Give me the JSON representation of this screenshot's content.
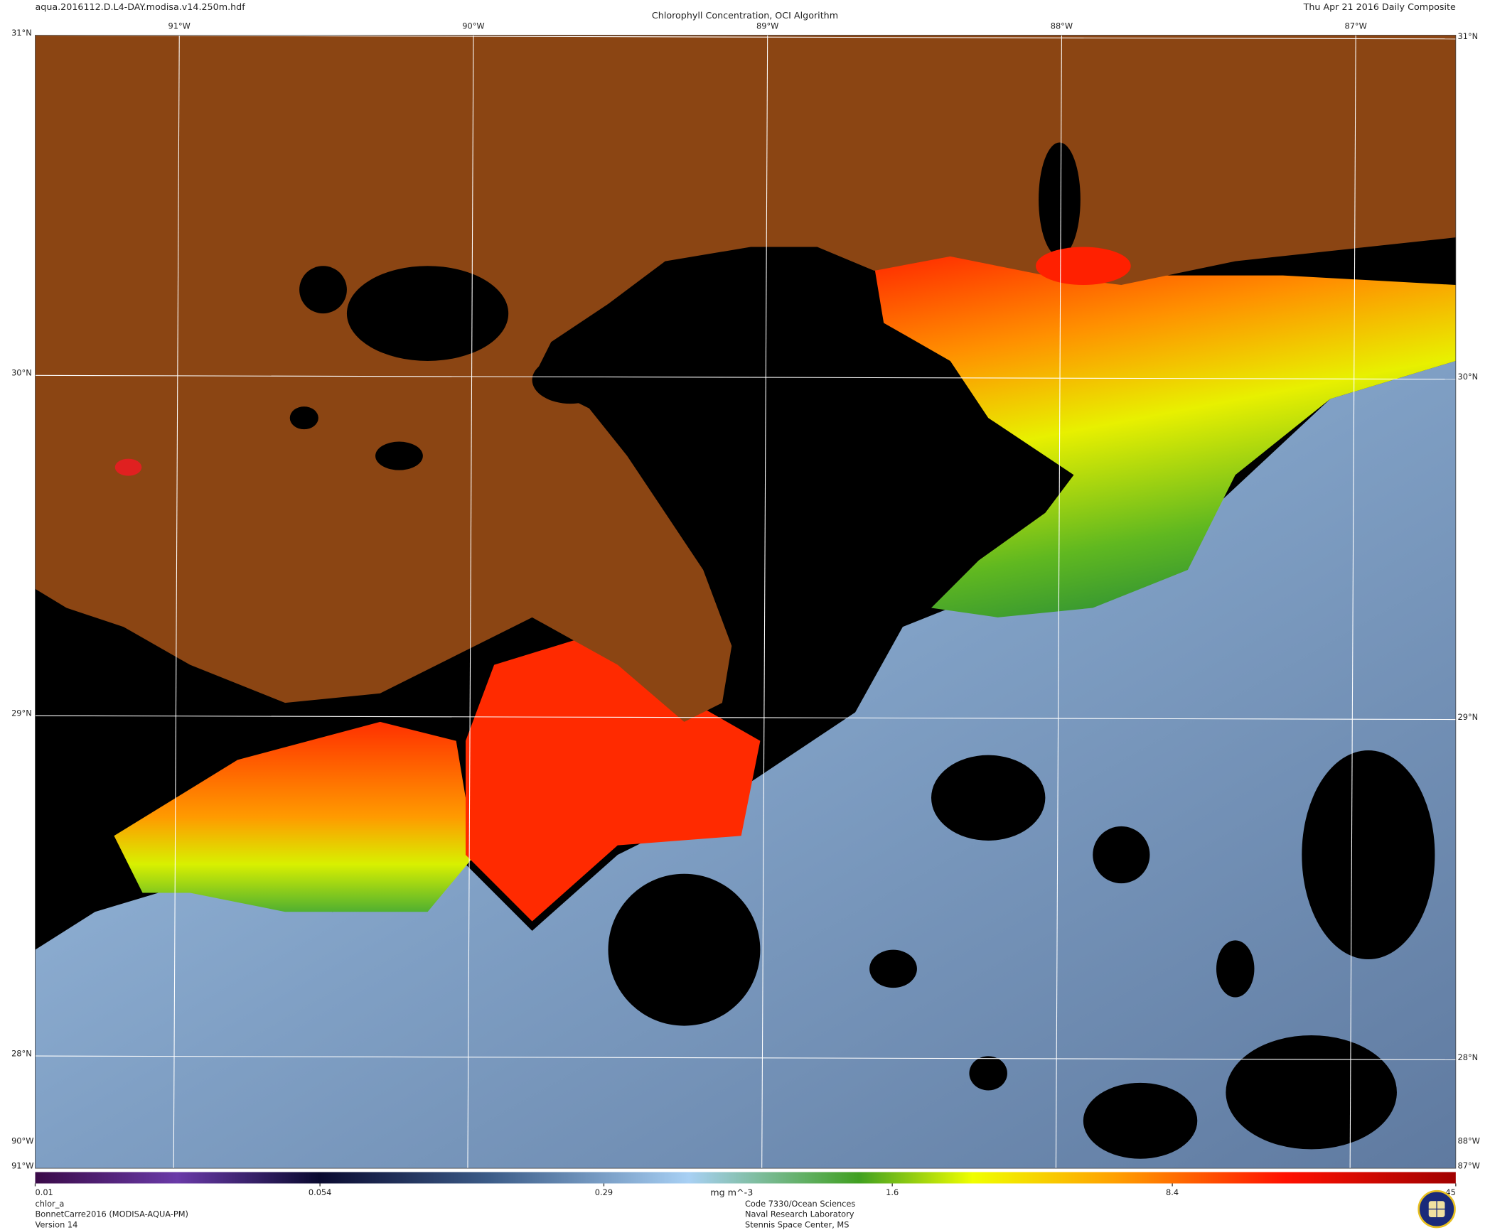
{
  "header": {
    "filename": "aqua.2016112.D.L4-DAY.modisa.v14.250m.hdf",
    "title": "Chlorophyll Concentration, OCI Algorithm",
    "date": "Thu Apr 21 2016 Daily Composite"
  },
  "map": {
    "xlim": [
      -91.49,
      -86.66
    ],
    "ylim": [
      27.67,
      31
    ],
    "lon_ticks": [
      {
        "value": -91,
        "label": "91°W"
      },
      {
        "value": -90,
        "label": "90°W"
      },
      {
        "value": -89,
        "label": "89°W"
      },
      {
        "value": -88,
        "label": "88°W"
      },
      {
        "value": -87,
        "label": "87°W"
      }
    ],
    "lat_ticks": [
      {
        "value": 31,
        "label": "31°N"
      },
      {
        "value": 30,
        "label": "30°N"
      },
      {
        "value": 29,
        "label": "29°N"
      },
      {
        "value": 28,
        "label": "28°N"
      }
    ],
    "grid_color": "#ffffff"
  },
  "colorbar": {
    "scale": "log",
    "unit": "mg m^-3",
    "ticks": [
      0.01,
      0.054,
      0.29,
      1.6,
      8.4,
      45
    ]
  },
  "footer": {
    "left": [
      "chlor_a",
      "BonnetCarre2016 (MODISA-AQUA-PM)",
      "Version 14"
    ],
    "center": [
      "Code 7330/Ocean Sciences",
      "Naval Research Laboratory",
      "Stennis Space Center, MS"
    ]
  }
}
